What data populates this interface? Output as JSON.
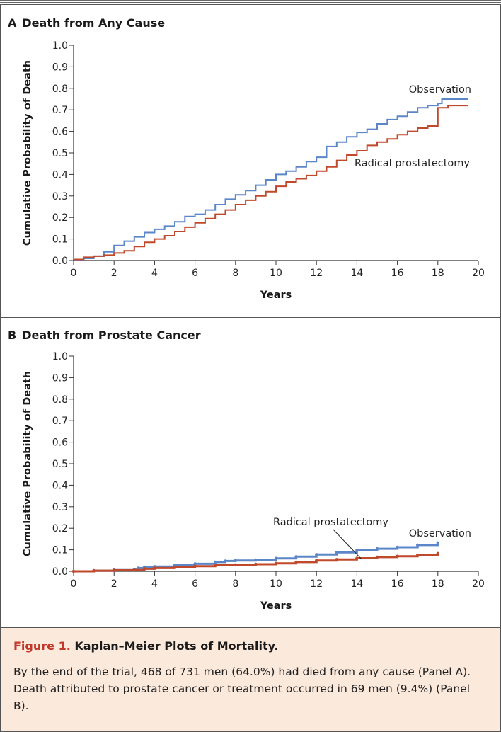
{
  "figure": {
    "caption_label": "Figure 1.",
    "caption_title": "Kaplan–Meier Plots of Mortality.",
    "caption_text": "By the end of the trial, 468 of 731 men (64.0%) had died from any cause (Panel A). Death attributed to prostate cancer or treatment occurred in 69 men (9.4%) (Panel B)."
  },
  "colors": {
    "observation": "#5b86c8",
    "radical_prostatectomy": "#c0492b",
    "axis": "#333333"
  },
  "chart_data": [
    {
      "type": "line",
      "panel": "A",
      "title": "Death from Any Cause",
      "xlabel": "Years",
      "ylabel": "Cumulative Probability of Death",
      "xlim": [
        0,
        20
      ],
      "ylim": [
        0,
        1.0
      ],
      "xticks": [
        "0",
        "2",
        "4",
        "6",
        "8",
        "10",
        "12",
        "14",
        "16",
        "18",
        "20"
      ],
      "yticks": [
        "0.0",
        "0.1",
        "0.2",
        "0.3",
        "0.4",
        "0.5",
        "0.6",
        "0.7",
        "0.8",
        "0.9",
        "1.0"
      ],
      "grid": false,
      "series": [
        {
          "name": "Observation",
          "x": [
            0,
            0.5,
            1.0,
            1.5,
            2.0,
            2.5,
            3.0,
            3.5,
            4.0,
            4.5,
            5.0,
            5.5,
            6.0,
            6.5,
            7.0,
            7.5,
            8.0,
            8.5,
            9.0,
            9.5,
            10.0,
            10.5,
            11.0,
            11.5,
            12.0,
            12.5,
            13.0,
            13.5,
            14.0,
            14.5,
            15.0,
            15.5,
            16.0,
            16.5,
            17.0,
            17.5,
            18.0,
            18.2,
            18.5,
            19.0,
            19.5
          ],
          "y": [
            0.0,
            0.01,
            0.02,
            0.04,
            0.07,
            0.09,
            0.11,
            0.13,
            0.145,
            0.16,
            0.18,
            0.205,
            0.215,
            0.235,
            0.26,
            0.285,
            0.305,
            0.325,
            0.35,
            0.375,
            0.4,
            0.415,
            0.435,
            0.46,
            0.48,
            0.53,
            0.55,
            0.575,
            0.595,
            0.61,
            0.635,
            0.655,
            0.67,
            0.69,
            0.71,
            0.72,
            0.73,
            0.75,
            0.75,
            0.75,
            0.75
          ],
          "label": "Observation"
        },
        {
          "name": "Radical prostatectomy",
          "x": [
            0,
            0.5,
            1.0,
            1.5,
            2.0,
            2.5,
            3.0,
            3.5,
            4.0,
            4.5,
            5.0,
            5.5,
            6.0,
            6.5,
            7.0,
            7.5,
            8.0,
            8.5,
            9.0,
            9.5,
            10.0,
            10.5,
            11.0,
            11.5,
            12.0,
            12.5,
            13.0,
            13.5,
            14.0,
            14.5,
            15.0,
            15.5,
            16.0,
            16.5,
            17.0,
            17.5,
            18.0,
            18.5,
            19.0,
            19.5
          ],
          "y": [
            0.005,
            0.015,
            0.02,
            0.025,
            0.035,
            0.045,
            0.065,
            0.085,
            0.1,
            0.115,
            0.135,
            0.155,
            0.175,
            0.195,
            0.215,
            0.235,
            0.26,
            0.28,
            0.3,
            0.32,
            0.345,
            0.365,
            0.38,
            0.395,
            0.415,
            0.435,
            0.465,
            0.49,
            0.51,
            0.535,
            0.55,
            0.565,
            0.585,
            0.6,
            0.615,
            0.625,
            0.71,
            0.72,
            0.72,
            0.72
          ],
          "label": "Radical prostatectomy"
        }
      ]
    },
    {
      "type": "line",
      "panel": "B",
      "title": "Death from Prostate Cancer",
      "xlabel": "Years",
      "ylabel": "Cumulative Probability of Death",
      "xlim": [
        0,
        20
      ],
      "ylim": [
        0,
        1.0
      ],
      "xticks": [
        "0",
        "2",
        "4",
        "6",
        "8",
        "10",
        "12",
        "14",
        "16",
        "18",
        "20"
      ],
      "yticks": [
        "0.0",
        "0.1",
        "0.2",
        "0.3",
        "0.4",
        "0.5",
        "0.6",
        "0.7",
        "0.8",
        "0.9",
        "1.0"
      ],
      "grid": false,
      "series": [
        {
          "name": "Observation",
          "x": [
            0,
            1,
            2,
            3,
            3.2,
            3.5,
            4,
            5,
            6,
            7,
            7.5,
            8,
            9,
            10,
            11,
            12,
            13,
            14,
            15,
            16,
            17,
            18
          ],
          "y": [
            0.0,
            0.003,
            0.006,
            0.008,
            0.015,
            0.02,
            0.022,
            0.028,
            0.035,
            0.043,
            0.048,
            0.05,
            0.053,
            0.06,
            0.068,
            0.078,
            0.088,
            0.098,
            0.105,
            0.112,
            0.122,
            0.132
          ],
          "label": "Observation"
        },
        {
          "name": "Radical prostatectomy",
          "x": [
            0,
            1,
            2,
            3,
            3.5,
            4,
            5,
            6,
            7,
            8,
            9,
            10,
            11,
            12,
            13,
            14,
            15,
            16,
            17,
            18
          ],
          "y": [
            0.0,
            0.003,
            0.005,
            0.006,
            0.012,
            0.015,
            0.02,
            0.024,
            0.028,
            0.03,
            0.033,
            0.037,
            0.043,
            0.05,
            0.055,
            0.061,
            0.066,
            0.07,
            0.075,
            0.083
          ],
          "label": "Radical prostatectomy"
        }
      ]
    }
  ]
}
